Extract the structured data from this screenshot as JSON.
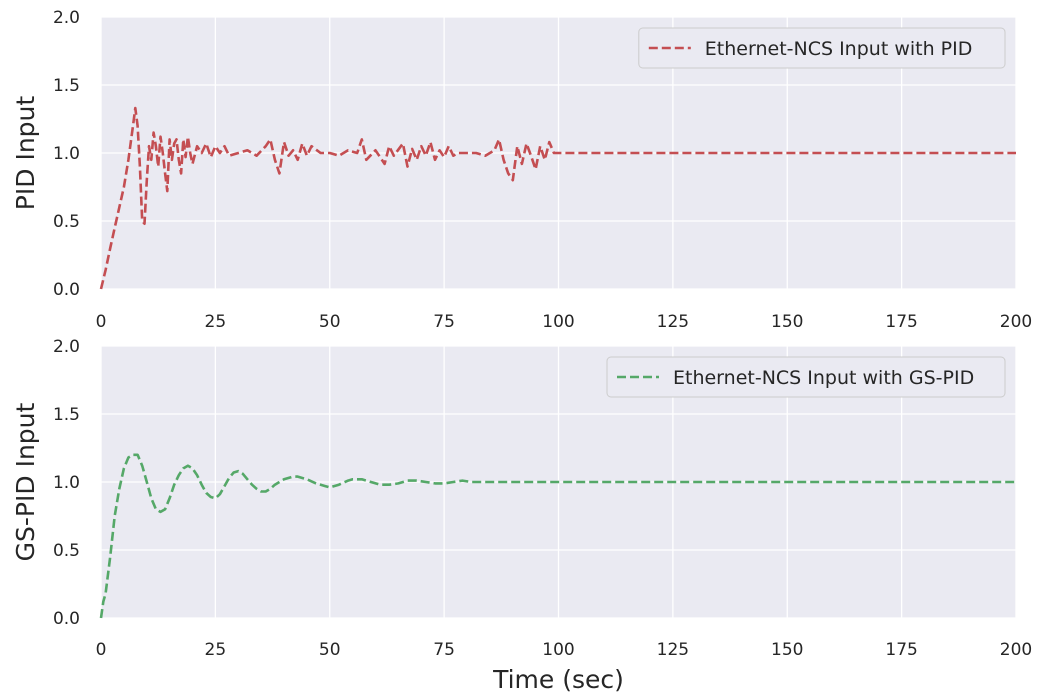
{
  "chart_data": [
    {
      "type": "line",
      "ylabel": "PID Input",
      "xlabel": "",
      "xlim": [
        0,
        200
      ],
      "ylim": [
        0,
        2
      ],
      "xticks": [
        0,
        25,
        50,
        75,
        100,
        125,
        150,
        175,
        200
      ],
      "xtick_labels": [
        "0",
        "25",
        "50",
        "75",
        "100",
        "125",
        "150",
        "175",
        "200"
      ],
      "yticks": [
        0,
        0.5,
        1,
        1.5,
        2
      ],
      "ytick_labels": [
        "0.0",
        "0.5",
        "1.0",
        "1.5",
        "2.0"
      ],
      "grid": true,
      "legend_position": "top-right",
      "series": [
        {
          "name": "Ethernet-NCS Input with PID",
          "color": "#c44e52",
          "line_style": "dashed",
          "x": [
            0,
            1,
            2,
            3,
            4,
            5,
            6,
            7,
            7.5,
            8,
            8.5,
            9,
            9.5,
            10,
            10.5,
            11,
            11.5,
            12,
            12.5,
            13,
            13.5,
            14,
            14.5,
            15,
            15.5,
            16,
            16.5,
            17,
            17.5,
            18,
            18.5,
            19,
            19.5,
            20,
            21,
            22,
            23,
            24,
            25,
            26,
            27,
            28,
            30,
            32,
            34,
            36,
            37,
            38,
            39,
            40,
            41,
            42,
            43,
            44,
            45,
            46,
            48,
            50,
            52,
            54,
            56,
            57,
            58,
            60,
            62,
            63,
            64,
            66,
            67,
            68,
            69,
            70,
            71,
            72,
            73,
            74,
            75,
            76,
            77,
            78,
            80,
            82,
            84,
            86,
            87,
            88,
            89,
            90,
            91,
            92,
            93,
            94,
            95,
            96,
            97,
            98,
            99,
            100,
            125,
            150,
            175,
            200
          ],
          "values": [
            0.0,
            0.14,
            0.3,
            0.45,
            0.6,
            0.75,
            0.95,
            1.2,
            1.33,
            1.2,
            0.9,
            0.5,
            0.48,
            0.8,
            1.05,
            0.95,
            1.15,
            1.05,
            0.9,
            1.12,
            1.0,
            0.85,
            0.72,
            1.1,
            0.95,
            1.07,
            1.1,
            0.95,
            0.85,
            1.1,
            0.97,
            1.12,
            1.0,
            0.92,
            1.05,
            1.0,
            1.07,
            0.97,
            1.05,
            1.0,
            1.05,
            0.98,
            1.0,
            1.02,
            0.98,
            1.05,
            1.1,
            0.95,
            0.85,
            1.08,
            0.98,
            1.02,
            0.95,
            1.07,
            0.98,
            1.05,
            1.0,
            1.0,
            0.98,
            1.02,
            1.0,
            1.1,
            0.95,
            1.02,
            0.92,
            1.05,
            0.98,
            1.07,
            0.9,
            1.03,
            0.95,
            1.05,
            0.98,
            1.08,
            0.95,
            1.02,
            0.97,
            1.05,
            0.98,
            1.0,
            1.0,
            1.0,
            0.98,
            1.02,
            1.1,
            0.95,
            0.85,
            0.8,
            1.05,
            0.92,
            1.07,
            0.98,
            0.88,
            1.05,
            0.95,
            1.08,
            1.0,
            1.0,
            1.0,
            1.0,
            1.0,
            1.0
          ]
        }
      ]
    },
    {
      "type": "line",
      "ylabel": "GS-PID Input",
      "xlabel": "Time (sec)",
      "xlim": [
        0,
        200
      ],
      "ylim": [
        0,
        2
      ],
      "xticks": [
        0,
        25,
        50,
        75,
        100,
        125,
        150,
        175,
        200
      ],
      "xtick_labels": [
        "0",
        "25",
        "50",
        "75",
        "100",
        "125",
        "150",
        "175",
        "200"
      ],
      "yticks": [
        0,
        0.5,
        1,
        1.5,
        2
      ],
      "ytick_labels": [
        "0.0",
        "0.5",
        "1.0",
        "1.5",
        "2.0"
      ],
      "grid": true,
      "legend_position": "top-right",
      "series": [
        {
          "name": "Ethernet-NCS Input with GS-PID",
          "color": "#55a868",
          "line_style": "dashed",
          "x": [
            0,
            0.5,
            1,
            2,
            3,
            4,
            5,
            6,
            7,
            8,
            9,
            10,
            11,
            12,
            13,
            14,
            15,
            16,
            17,
            18,
            19,
            20,
            21,
            22,
            23,
            24,
            25,
            26,
            27,
            28,
            29,
            30,
            31,
            32,
            33,
            34,
            35,
            36,
            37,
            38,
            40,
            42,
            43,
            45,
            47,
            49,
            50,
            52,
            54,
            55,
            57,
            59,
            61,
            63,
            65,
            67,
            69,
            71,
            73,
            75,
            77,
            79,
            81,
            83,
            85,
            90,
            95,
            100,
            200
          ],
          "values": [
            0.0,
            0.12,
            0.18,
            0.45,
            0.75,
            0.95,
            1.1,
            1.18,
            1.2,
            1.2,
            1.12,
            1.0,
            0.88,
            0.8,
            0.78,
            0.8,
            0.88,
            0.98,
            1.05,
            1.1,
            1.12,
            1.1,
            1.05,
            0.98,
            0.92,
            0.89,
            0.88,
            0.91,
            0.97,
            1.03,
            1.07,
            1.08,
            1.06,
            1.02,
            0.98,
            0.95,
            0.93,
            0.93,
            0.95,
            0.98,
            1.02,
            1.04,
            1.04,
            1.02,
            0.99,
            0.97,
            0.96,
            0.98,
            1.01,
            1.02,
            1.02,
            1.0,
            0.98,
            0.98,
            0.99,
            1.01,
            1.01,
            1.0,
            0.99,
            0.99,
            1.0,
            1.01,
            1.0,
            1.0,
            1.0,
            1.0,
            1.0,
            1.0,
            1.0
          ]
        }
      ]
    }
  ]
}
